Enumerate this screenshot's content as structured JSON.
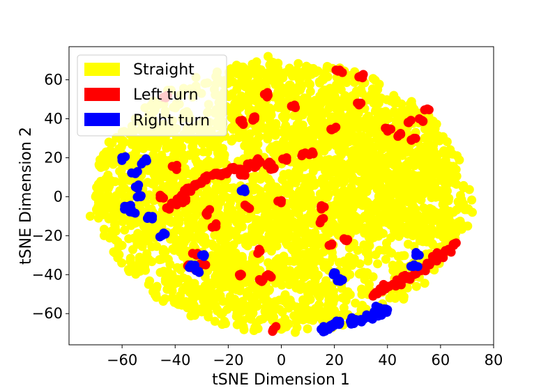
{
  "chart_data": {
    "type": "scatter",
    "title": "",
    "xlabel": "tSNE Dimension 1",
    "ylabel": "tSNE Dimension 2",
    "xlim": [
      -80,
      80
    ],
    "ylim": [
      -76,
      77
    ],
    "xticks": [
      -60,
      -40,
      -20,
      0,
      20,
      40,
      60,
      80
    ],
    "yticks": [
      -60,
      -40,
      -20,
      0,
      20,
      40,
      60
    ],
    "xtick_labels": [
      "−60",
      "−40",
      "−20",
      "0",
      "20",
      "40",
      "60",
      "80"
    ],
    "ytick_labels": [
      "−60",
      "−40",
      "−20",
      "0",
      "20",
      "40",
      "60"
    ],
    "grid": false,
    "legend_position": "top-left",
    "colors": {
      "Straight": "#ffff00",
      "Left turn": "#ff0000",
      "Right turn": "#0000ff"
    },
    "series": [
      {
        "name": "Straight",
        "color": "#ffff00",
        "clusters": [
          {
            "cx": 0,
            "cy": 0,
            "rx": 70,
            "ry": 70
          },
          {
            "cx": -10,
            "cy": -20,
            "rx": 30,
            "ry": 25
          },
          {
            "cx": 25,
            "cy": 10,
            "rx": 30,
            "ry": 30
          },
          {
            "cx": -45,
            "cy": 10,
            "rx": 25,
            "ry": 30
          },
          {
            "cx": 0,
            "cy": 45,
            "rx": 25,
            "ry": 25
          },
          {
            "cx": 40,
            "cy": 25,
            "rx": 25,
            "ry": 20
          },
          {
            "cx": -25,
            "cy": -45,
            "rx": 20,
            "ry": 15
          },
          {
            "cx": 5,
            "cy": -55,
            "rx": 20,
            "ry": 10
          },
          {
            "cx": 55,
            "cy": -5,
            "rx": 18,
            "ry": 20
          }
        ],
        "points": [
          [
            -70,
            0
          ],
          [
            -68,
            15
          ],
          [
            -60,
            -25
          ],
          [
            72,
            -8
          ],
          [
            65,
            15
          ],
          [
            -5,
            72
          ],
          [
            0,
            -68
          ],
          [
            30,
            -60
          ],
          [
            -35,
            -55
          ],
          [
            -50,
            -45
          ],
          [
            10,
            65
          ],
          [
            30,
            55
          ],
          [
            50,
            45
          ],
          [
            -55,
            40
          ],
          [
            60,
            -30
          ],
          [
            -72,
            -10
          ]
        ]
      },
      {
        "name": "Left turn",
        "color": "#ff0000",
        "points": [
          [
            -25,
            12
          ],
          [
            -20,
            13
          ],
          [
            -15,
            14
          ],
          [
            -10,
            15
          ],
          [
            -5,
            17
          ],
          [
            -28,
            10
          ],
          [
            -32,
            6
          ],
          [
            -35,
            3
          ],
          [
            -38,
            0
          ],
          [
            -40,
            -3
          ],
          [
            -42,
            -5
          ],
          [
            -36,
            -2
          ],
          [
            -30,
            8
          ],
          [
            -18,
            15
          ],
          [
            -12,
            16
          ],
          [
            -8,
            18
          ],
          [
            -22,
            12
          ],
          [
            -26,
            11
          ],
          [
            -34,
            4
          ],
          [
            -37,
            1
          ],
          [
            2,
            20
          ],
          [
            8,
            22
          ],
          [
            12,
            22
          ],
          [
            -4,
            14
          ],
          [
            -14,
            12
          ],
          [
            35,
            -50
          ],
          [
            38,
            -47
          ],
          [
            42,
            -45
          ],
          [
            46,
            -42
          ],
          [
            50,
            -40
          ],
          [
            53,
            -37
          ],
          [
            56,
            -34
          ],
          [
            60,
            -30
          ],
          [
            63,
            -27
          ],
          [
            65,
            -25
          ],
          [
            58,
            -32
          ],
          [
            48,
            -41
          ],
          [
            44,
            -44
          ],
          [
            40,
            -46
          ],
          [
            52,
            -38
          ],
          [
            30,
            62
          ],
          [
            22,
            65
          ],
          [
            30,
            48
          ],
          [
            20,
            35
          ],
          [
            40,
            35
          ],
          [
            48,
            38
          ],
          [
            52,
            40
          ],
          [
            55,
            45
          ],
          [
            45,
            32
          ],
          [
            50,
            30
          ],
          [
            -5,
            52
          ],
          [
            5,
            47
          ],
          [
            -15,
            38
          ],
          [
            -10,
            40
          ],
          [
            -43,
            52
          ],
          [
            -35,
            -35
          ],
          [
            -32,
            -30
          ],
          [
            -30,
            -35
          ],
          [
            -25,
            -15
          ],
          [
            -28,
            -8
          ],
          [
            0,
            -2
          ],
          [
            -40,
            15
          ],
          [
            -45,
            0
          ],
          [
            -13,
            -5
          ],
          [
            -8,
            -28
          ],
          [
            15,
            -12
          ],
          [
            25,
            -22
          ],
          [
            -5,
            -40
          ],
          [
            -15,
            -40
          ],
          [
            -3,
            -68
          ],
          [
            -8,
            -43
          ],
          [
            18,
            -25
          ],
          [
            15,
            -5
          ]
        ]
      },
      {
        "name": "Right turn",
        "color": "#0000ff",
        "points": [
          [
            15,
            -68
          ],
          [
            18,
            -67
          ],
          [
            22,
            -65
          ],
          [
            26,
            -64
          ],
          [
            30,
            -63
          ],
          [
            33,
            -62
          ],
          [
            36,
            -61
          ],
          [
            38,
            -60
          ],
          [
            40,
            -58
          ],
          [
            20,
            -66
          ],
          [
            28,
            -63
          ],
          [
            35,
            -59
          ],
          [
            37,
            -57
          ],
          [
            -60,
            20
          ],
          [
            -55,
            12
          ],
          [
            -55,
            5
          ],
          [
            -53,
            0
          ],
          [
            -58,
            -5
          ],
          [
            -56,
            -8
          ],
          [
            -50,
            -10
          ],
          [
            -52,
            18
          ],
          [
            -32,
            -38
          ],
          [
            -34,
            -35
          ],
          [
            -45,
            -20
          ],
          [
            -30,
            -30
          ],
          [
            22,
            -42
          ],
          [
            20,
            -40
          ],
          [
            50,
            -35
          ],
          [
            52,
            -30
          ],
          [
            -15,
            3
          ]
        ]
      }
    ]
  }
}
